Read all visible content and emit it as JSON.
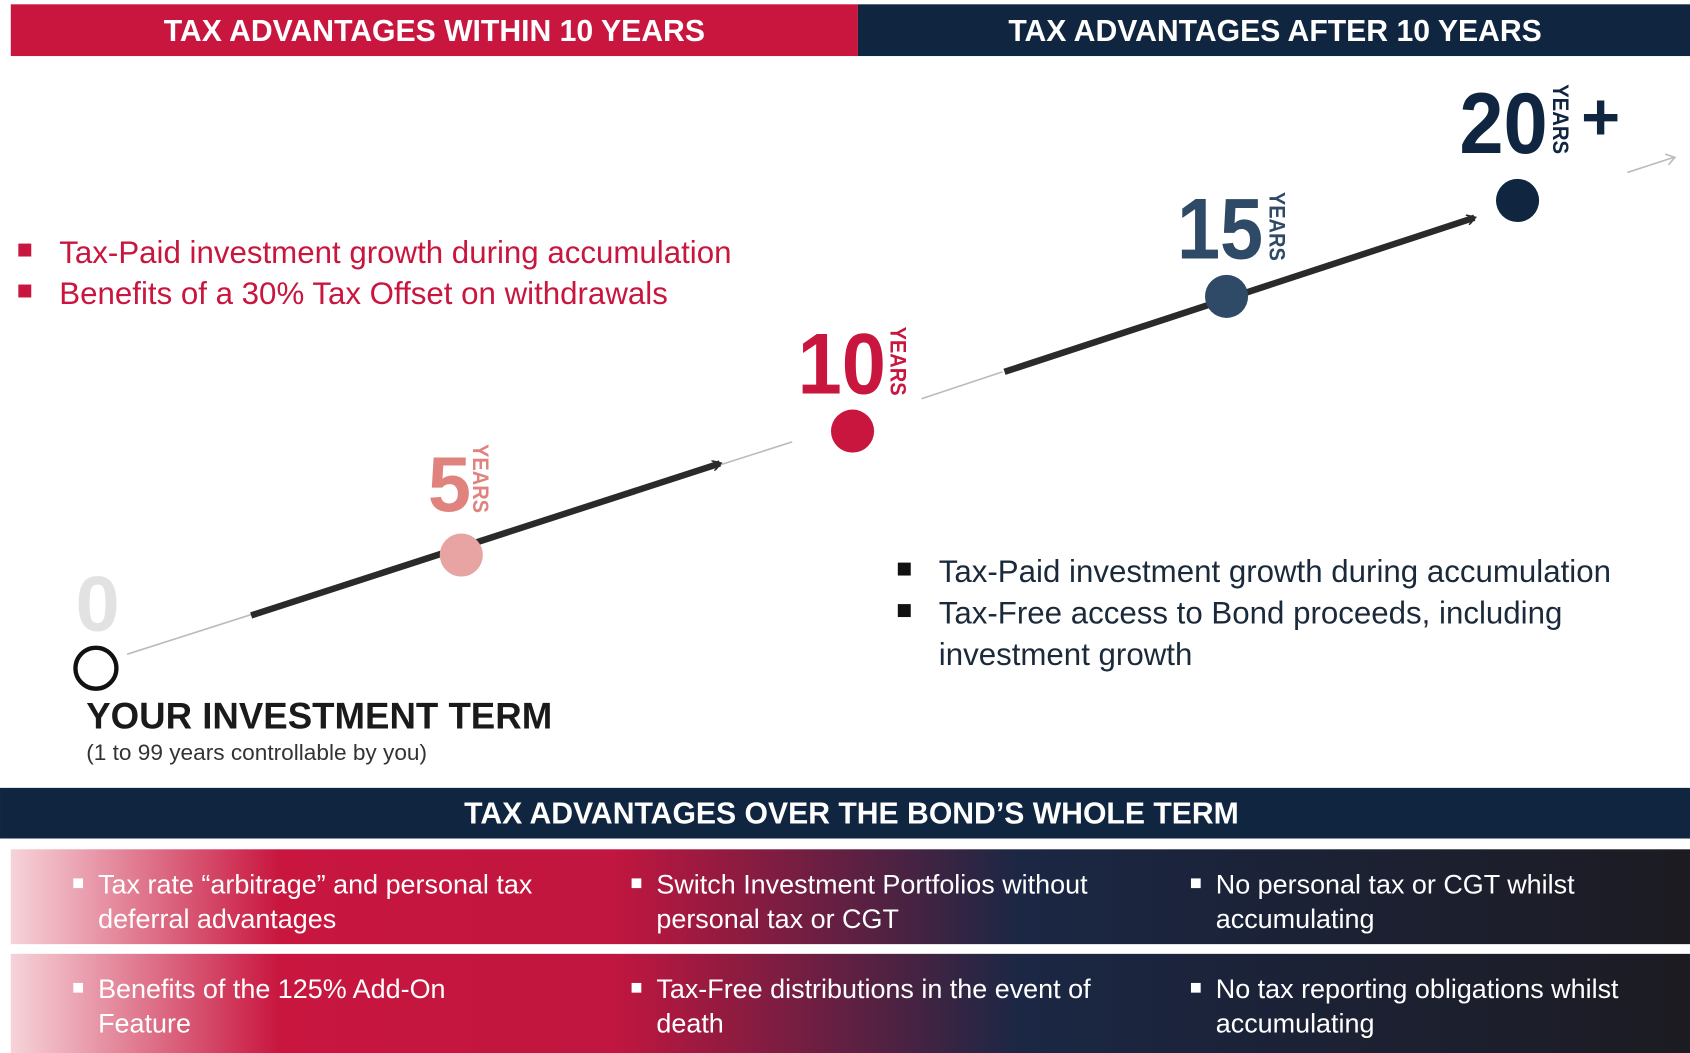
{
  "headers": {
    "within": "TAX ADVANTAGES WITHIN 10 YEARS",
    "after": "TAX ADVANTAGES AFTER 10 YEARS"
  },
  "within_bullets": [
    "Tax-Paid investment growth during accumulation",
    "Benefits of a 30% Tax Offset on withdrawals"
  ],
  "after_bullets": [
    {
      "lines": [
        "Tax-Paid investment growth during accumulation"
      ]
    },
    {
      "lines": [
        "Tax-Free access to Bond proceeds, including",
        "investment growth"
      ]
    }
  ],
  "milestones": [
    {
      "number": "0"
    },
    {
      "number": "5",
      "unit": "YEARS"
    },
    {
      "number": "10",
      "unit": "YEARS"
    },
    {
      "number": "15",
      "unit": "YEARS"
    },
    {
      "number": "20",
      "unit": "YEARS",
      "suffix": "+"
    }
  ],
  "term": {
    "title": "YOUR INVESTMENT TERM",
    "subtitle": "(1 to 99 years controllable by you)"
  },
  "whole_term": {
    "title": "TAX ADVANTAGES OVER THE BOND’S WHOLE TERM",
    "rows": [
      [
        {
          "lines": [
            "Tax rate “arbitrage” and personal tax",
            "deferral advantages"
          ]
        },
        {
          "lines": [
            "Switch Investment Portfolios without",
            "personal tax or CGT"
          ]
        },
        {
          "lines": [
            "No personal tax or CGT whilst",
            "accumulating"
          ]
        }
      ],
      [
        {
          "lines": [
            "Benefits of the 125% Add-On",
            "Feature"
          ]
        },
        {
          "lines": [
            "Tax-Free distributions in the event of",
            "death"
          ]
        },
        {
          "lines": [
            "No tax reporting obligations whilst",
            "accumulating"
          ]
        }
      ]
    ]
  }
}
